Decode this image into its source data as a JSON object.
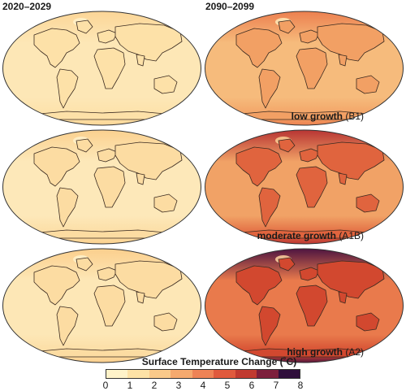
{
  "periods": [
    "2020–2029",
    "2090–2099"
  ],
  "scenarios": [
    {
      "label": "low growth",
      "code": "(B1)"
    },
    {
      "label": "moderate growth",
      "code": "(A1B)"
    },
    {
      "label": "high growth",
      "code": "(A2)"
    }
  ],
  "legend": {
    "title": "Surface Temperature Change (˚C)",
    "ticks": [
      "0",
      "1",
      "2",
      "3",
      "4",
      "5",
      "6",
      "7",
      "8"
    ],
    "colors": [
      "#fff3c9",
      "#fde2a6",
      "#f9c98a",
      "#f5a96e",
      "#ee8356",
      "#e05a3d",
      "#c13a30",
      "#7d1f3c",
      "#2f0e3b"
    ]
  },
  "maps": [
    {
      "scenario": "low growth",
      "period": "2020–2029",
      "ocean": "#fde7b6",
      "land": "#fde1a8",
      "pole": "#fcd596",
      "spot": "#fff0c8"
    },
    {
      "scenario": "low growth",
      "period": "2090–2099",
      "ocean": "#f6bb7c",
      "land": "#f2a064",
      "pole": "#ec7e4e",
      "spot": "#fde6b4"
    },
    {
      "scenario": "moderate growth",
      "period": "2020–2029",
      "ocean": "#fde8b9",
      "land": "#fcdca2",
      "pole": "#fbd08e",
      "spot": "#fff0c8"
    },
    {
      "scenario": "moderate growth",
      "period": "2090–2099",
      "ocean": "#f1a266",
      "land": "#e0643e",
      "pole": "#b63232",
      "spot": "#f8c990"
    },
    {
      "scenario": "high growth",
      "period": "2020–2029",
      "ocean": "#fde7b6",
      "land": "#fcdca2",
      "pole": "#fbce8c",
      "spot": "#fff0c8"
    },
    {
      "scenario": "high growth",
      "period": "2090–2099",
      "ocean": "#e97a4c",
      "land": "#d2482f",
      "pole": "#4a1240",
      "spot": "#f7c99a"
    }
  ]
}
